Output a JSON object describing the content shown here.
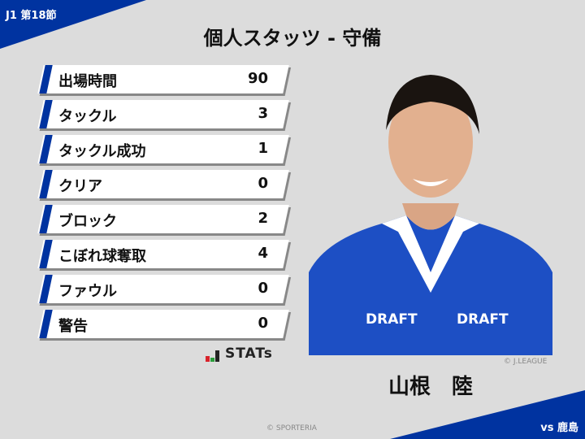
{
  "header": {
    "round": "J1 第18節",
    "title": "個人スタッツ - 守備"
  },
  "stats": [
    {
      "label": "出場時間",
      "value": "90"
    },
    {
      "label": "タックル",
      "value": "3"
    },
    {
      "label": "タックル成功",
      "value": "1"
    },
    {
      "label": "クリア",
      "value": "0"
    },
    {
      "label": "ブロック",
      "value": "2"
    },
    {
      "label": "こぼれ球奪取",
      "value": "4"
    },
    {
      "label": "ファウル",
      "value": "0"
    },
    {
      "label": "警告",
      "value": "0"
    }
  ],
  "logo": {
    "text": "STATs"
  },
  "player": {
    "name": "山根　陸",
    "photo_credit": "© J.LEAGUE",
    "jersey_text": "DRAFT"
  },
  "footer": {
    "credit": "© SPORTERIA",
    "opponent": "vs 鹿島"
  },
  "colors": {
    "accent": "#0033a0",
    "background": "#dcdcdc"
  }
}
